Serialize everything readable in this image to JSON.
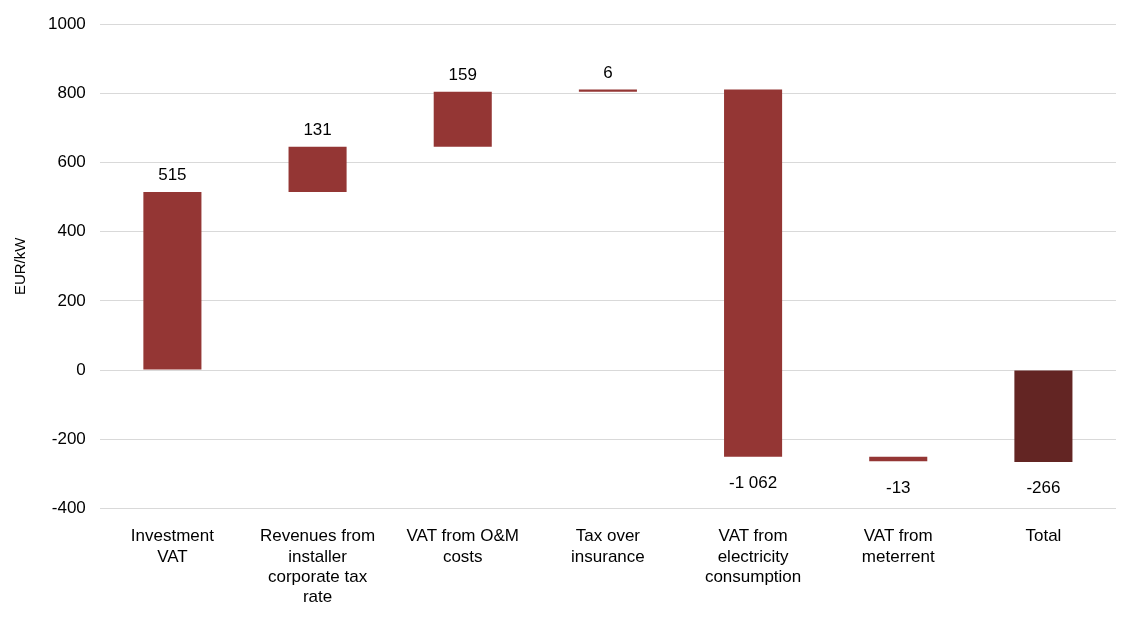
{
  "chart_data": {
    "type": "bar",
    "ylabel": "EUR/kW",
    "categories": [
      "Investment VAT",
      "Revenues from installer corporate tax rate",
      "VAT from O&M costs",
      "Tax over insurance",
      "VAT from electricity consumption",
      "VAT from meterrent",
      "Total"
    ],
    "values": [
      515,
      131,
      159,
      6,
      -1062,
      -13,
      -266
    ],
    "base": [
      0,
      515,
      646,
      805,
      811,
      -251,
      0
    ],
    "colors": [
      "#943634",
      "#943634",
      "#943634",
      "#943634",
      "#943634",
      "#943634",
      "#632523"
    ],
    "value_labels": [
      "515",
      "131",
      "159",
      "6",
      "-1 062",
      "-13",
      "-266"
    ],
    "ylim": [
      -400,
      1000
    ],
    "yticks": [
      -400,
      -200,
      0,
      200,
      400,
      600,
      800,
      1000
    ],
    "grid": "y",
    "legend": false
  }
}
